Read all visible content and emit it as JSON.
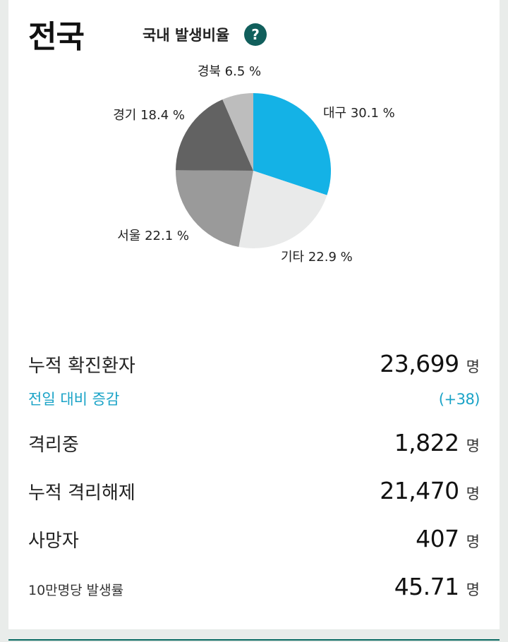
{
  "header": {
    "region": "전국",
    "section_label": "국내 발생비율",
    "help_icon": "question-icon",
    "help_glyph": "?"
  },
  "chart_data": {
    "type": "pie",
    "slices": [
      {
        "label": "대구",
        "value": 30.1,
        "display": "대구 30.1 %",
        "color": "#14b2e6"
      },
      {
        "label": "기타",
        "value": 22.9,
        "display": "기타 22.9 %",
        "color": "#e9eaea"
      },
      {
        "label": "서울",
        "value": 22.1,
        "display": "서울 22.1 %",
        "color": "#9a9a9a"
      },
      {
        "label": "경기",
        "value": 18.4,
        "display": "경기 18.4 %",
        "color": "#626262"
      },
      {
        "label": "경북",
        "value": 6.5,
        "display": "경북 6.5 %",
        "color": "#bdbdbd"
      }
    ]
  },
  "stats": {
    "total_confirmed": {
      "label": "누적 확진환자",
      "value": "23,699",
      "unit": "명"
    },
    "daily_change": {
      "label": "전일 대비 증감",
      "value": "(+38)"
    },
    "isolated": {
      "label": "격리중",
      "value": "1,822",
      "unit": "명"
    },
    "released": {
      "label": "누적 격리해제",
      "value": "21,470",
      "unit": "명"
    },
    "deaths": {
      "label": "사망자",
      "value": "407",
      "unit": "명"
    },
    "rate_per_100k": {
      "label": "10만명당 발생률",
      "value": "45.71",
      "unit": "명"
    }
  }
}
